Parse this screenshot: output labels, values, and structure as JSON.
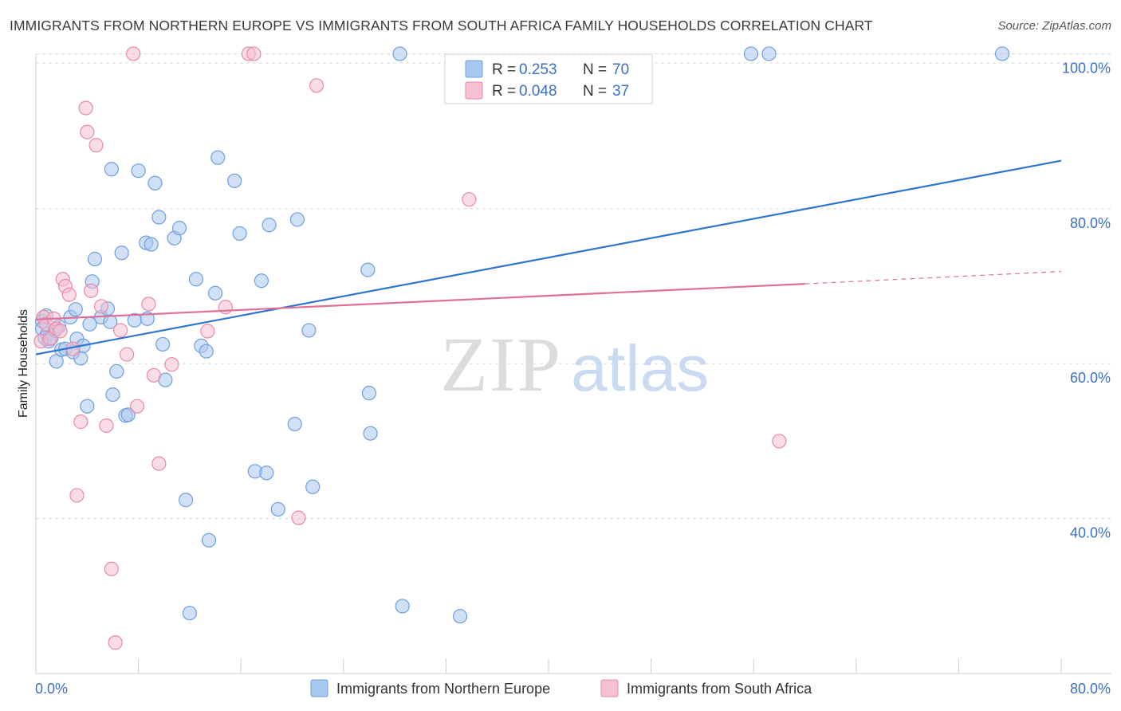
{
  "title": "IMMIGRANTS FROM NORTHERN EUROPE VS IMMIGRANTS FROM SOUTH AFRICA FAMILY HOUSEHOLDS CORRELATION CHART",
  "source": "Source: ZipAtlas.com",
  "watermark": {
    "zip": "ZIP",
    "atlas": "atlas"
  },
  "colors": {
    "blue_fill": "#a9c8f0",
    "blue_stroke": "#6f9fdc",
    "blue_line": "#2f74d0",
    "pink_fill": "#f5c0d2",
    "pink_stroke": "#e88aab",
    "pink_line": "#e06f98",
    "axis_text": "#3b6fc6",
    "grid": "#d8d8d8"
  },
  "legend": {
    "rows": [
      {
        "r_label": "R =",
        "r_value": "0.253",
        "n_label": "N =",
        "n_value": "70"
      },
      {
        "r_label": "R =",
        "r_value": "0.048",
        "n_label": "N =",
        "n_value": "37"
      }
    ]
  },
  "chart_data": {
    "type": "scatter",
    "title": "IMMIGRANTS FROM NORTHERN EUROPE VS IMMIGRANTS FROM SOUTH AFRICA FAMILY HOUSEHOLDS CORRELATION CHART",
    "xlabel": "",
    "ylabel": "Family Households",
    "xlim": [
      0,
      80
    ],
    "ylim": [
      20,
      102
    ],
    "x_tick_labels": [
      "0.0%",
      "80.0%"
    ],
    "y_ticks": [
      40,
      60,
      80,
      100
    ],
    "y_tick_labels": [
      "40.0%",
      "60.0%",
      "80.0%",
      "100.0%"
    ],
    "grid": true,
    "legend_position": "top-center",
    "series": [
      {
        "name": "Immigrants from Northern Europe",
        "r": 0.253,
        "n": 70,
        "trend": {
          "x0": 0,
          "y0": 61.2,
          "x1": 80,
          "y1": 86.2
        },
        "points": [
          [
            0.5,
            65.5
          ],
          [
            0.5,
            64.5
          ],
          [
            0.7,
            63.3
          ],
          [
            0.8,
            66.2
          ],
          [
            0.9,
            63.8
          ],
          [
            1.0,
            62.9
          ],
          [
            1.2,
            63.3
          ],
          [
            1.5,
            64.3
          ],
          [
            1.6,
            60.3
          ],
          [
            1.8,
            64.8
          ],
          [
            2.0,
            61.8
          ],
          [
            2.3,
            61.9
          ],
          [
            2.7,
            66.0
          ],
          [
            2.9,
            61.5
          ],
          [
            3.1,
            67.0
          ],
          [
            3.2,
            63.2
          ],
          [
            3.5,
            60.7
          ],
          [
            3.7,
            62.3
          ],
          [
            4.2,
            65.1
          ],
          [
            4.4,
            70.6
          ],
          [
            4.6,
            73.5
          ],
          [
            5.1,
            66.0
          ],
          [
            5.6,
            67.1
          ],
          [
            5.8,
            65.4
          ],
          [
            6.0,
            56.0
          ],
          [
            6.3,
            59.0
          ],
          [
            6.7,
            74.3
          ],
          [
            7.0,
            53.3
          ],
          [
            7.2,
            53.4
          ],
          [
            7.7,
            65.6
          ],
          [
            8.0,
            84.9
          ],
          [
            8.6,
            75.6
          ],
          [
            8.7,
            65.8
          ],
          [
            9.0,
            75.4
          ],
          [
            9.3,
            83.3
          ],
          [
            9.6,
            78.9
          ],
          [
            9.9,
            62.5
          ],
          [
            10.1,
            57.9
          ],
          [
            10.8,
            76.2
          ],
          [
            11.2,
            77.5
          ],
          [
            11.7,
            42.4
          ],
          [
            12.5,
            70.9
          ],
          [
            12.9,
            62.3
          ],
          [
            13.3,
            61.6
          ],
          [
            14.0,
            69.1
          ],
          [
            14.2,
            86.6
          ],
          [
            15.5,
            83.6
          ],
          [
            15.9,
            76.8
          ],
          [
            17.1,
            46.1
          ],
          [
            17.6,
            70.7
          ],
          [
            18.2,
            77.9
          ],
          [
            18.9,
            41.2
          ],
          [
            20.2,
            52.2
          ],
          [
            20.4,
            78.6
          ],
          [
            21.3,
            64.3
          ],
          [
            21.6,
            44.1
          ],
          [
            25.9,
            72.1
          ],
          [
            26.0,
            56.2
          ],
          [
            26.1,
            51.0
          ],
          [
            28.4,
            100.0
          ],
          [
            28.6,
            28.7
          ],
          [
            33.1,
            27.4
          ],
          [
            55.8,
            100.0
          ],
          [
            57.2,
            100.0
          ],
          [
            75.4,
            100.0
          ],
          [
            5.9,
            85.1
          ],
          [
            4.0,
            54.5
          ],
          [
            12.0,
            27.8
          ],
          [
            13.5,
            37.2
          ],
          [
            18.0,
            45.9
          ]
        ]
      },
      {
        "name": "Immigrants from South Africa",
        "r": 0.048,
        "n": 37,
        "trend_solid": {
          "x0": 0,
          "y0": 65.7,
          "x1": 60,
          "y1": 70.3
        },
        "trend_dashed": {
          "x0": 60,
          "y0": 70.3,
          "x1": 80,
          "y1": 71.9
        },
        "points": [
          [
            0.4,
            62.9
          ],
          [
            0.6,
            66.0
          ],
          [
            0.8,
            65.1
          ],
          [
            1.1,
            63.2
          ],
          [
            1.4,
            65.8
          ],
          [
            1.6,
            64.5
          ],
          [
            1.9,
            64.2
          ],
          [
            2.1,
            70.9
          ],
          [
            2.3,
            70.0
          ],
          [
            2.6,
            68.9
          ],
          [
            2.9,
            61.9
          ],
          [
            3.2,
            43.0
          ],
          [
            3.5,
            52.5
          ],
          [
            3.9,
            93.0
          ],
          [
            4.3,
            69.4
          ],
          [
            4.7,
            88.2
          ],
          [
            5.1,
            67.4
          ],
          [
            5.5,
            52.0
          ],
          [
            5.9,
            33.5
          ],
          [
            6.2,
            24.0
          ],
          [
            6.6,
            64.3
          ],
          [
            7.1,
            61.2
          ],
          [
            7.6,
            100.0
          ],
          [
            7.9,
            54.5
          ],
          [
            8.8,
            67.7
          ],
          [
            9.2,
            58.5
          ],
          [
            9.6,
            47.1
          ],
          [
            10.6,
            59.9
          ],
          [
            13.4,
            64.2
          ],
          [
            14.8,
            67.3
          ],
          [
            16.6,
            100.0
          ],
          [
            17.0,
            100.0
          ],
          [
            20.5,
            40.1
          ],
          [
            21.9,
            95.9
          ],
          [
            33.8,
            81.2
          ],
          [
            58.0,
            50.0
          ],
          [
            4.0,
            89.9
          ]
        ]
      }
    ]
  },
  "bottom_legend": {
    "items": [
      "Immigrants from Northern Europe",
      "Immigrants from South Africa"
    ]
  }
}
